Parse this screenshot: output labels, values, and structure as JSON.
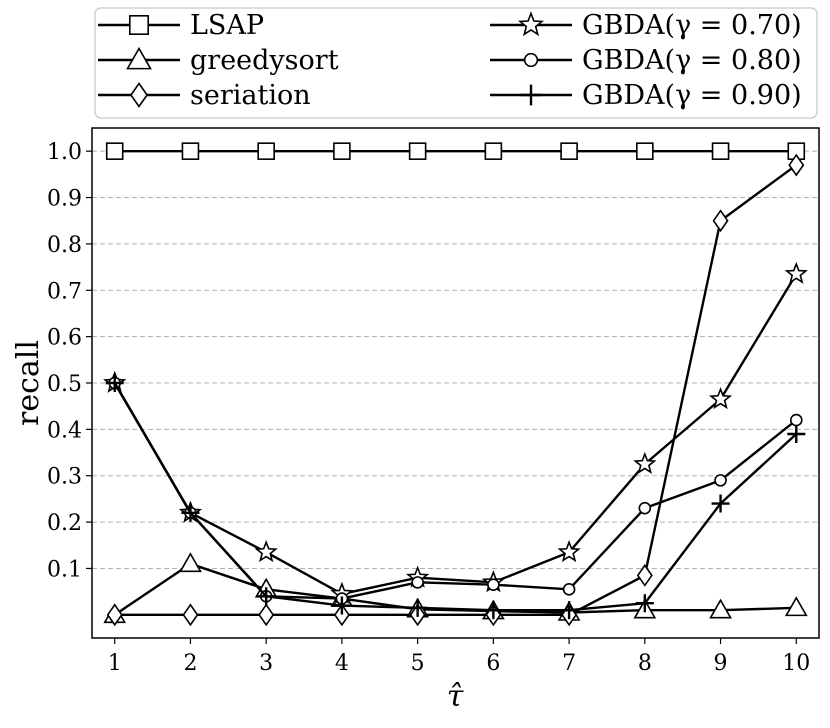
{
  "chart_data": {
    "type": "line",
    "title": "",
    "xlabel": "τ̂",
    "ylabel": "recall",
    "x": [
      1,
      2,
      3,
      4,
      5,
      6,
      7,
      8,
      9,
      10
    ],
    "xlim": [
      0.7,
      10.3
    ],
    "ylim": [
      -0.05,
      1.05
    ],
    "x_ticks": [
      "1",
      "2",
      "3",
      "4",
      "5",
      "6",
      "7",
      "8",
      "9",
      "10"
    ],
    "y_ticks": [
      "0.1",
      "0.2",
      "0.3",
      "0.4",
      "0.5",
      "0.6",
      "0.7",
      "0.8",
      "0.9",
      "1.0"
    ],
    "y_tick_values": [
      0.1,
      0.2,
      0.3,
      0.4,
      0.5,
      0.6,
      0.7,
      0.8,
      0.9,
      1.0
    ],
    "grid": "horizontal dashed",
    "legend_position": "top, above plot",
    "series": [
      {
        "name": "LSAP",
        "marker": "square",
        "values": [
          1.0,
          1.0,
          1.0,
          1.0,
          1.0,
          1.0,
          1.0,
          1.0,
          1.0,
          1.0
        ]
      },
      {
        "name": "greedysort",
        "marker": "triangle",
        "values": [
          0.0,
          0.11,
          0.055,
          0.035,
          0.012,
          0.008,
          0.005,
          0.01,
          0.01,
          0.015
        ]
      },
      {
        "name": "seriation",
        "marker": "diamond",
        "values": [
          0.0,
          0.0,
          0.0,
          0.0,
          0.0,
          0.0,
          0.0,
          0.085,
          0.85,
          0.97
        ]
      },
      {
        "name": "GBDA(γ = 0.70)",
        "marker": "star",
        "values": [
          0.5,
          0.22,
          0.135,
          0.045,
          0.08,
          0.07,
          0.135,
          0.325,
          0.465,
          0.735
        ]
      },
      {
        "name": "GBDA(γ = 0.80)",
        "marker": "circle",
        "values": [
          0.5,
          0.22,
          0.04,
          0.035,
          0.07,
          0.065,
          0.055,
          0.23,
          0.29,
          0.42
        ]
      },
      {
        "name": "GBDA(γ = 0.90)",
        "marker": "plus",
        "values": [
          0.5,
          0.22,
          0.04,
          0.02,
          0.015,
          0.01,
          0.01,
          0.025,
          0.24,
          0.39
        ]
      }
    ]
  }
}
